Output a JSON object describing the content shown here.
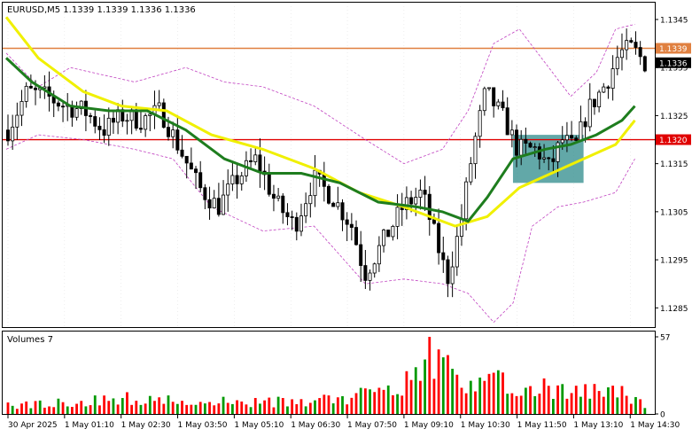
{
  "chart_title": "EURUSD,M5  1.1339 1.1339 1.1336 1.1336",
  "volume_label": "Volumes 7",
  "colors": {
    "bull": "#009900",
    "bear": "#ff0000",
    "sma_yellow": "#f0f000",
    "ma_green": "#1e7d1e",
    "envelope": "#c040c0",
    "support_line": "#e00000",
    "resistance_line": "#e08040",
    "zone": "#2e8b8b"
  },
  "chart_data": [
    {
      "type": "candlestick",
      "title": "EURUSD,M5  1.1339 1.1339 1.1336 1.1336",
      "y_ticks": [
        "1.1345",
        "1.1335",
        "1.1325",
        "1.1315",
        "1.1305",
        "1.1295",
        "1.1285"
      ],
      "ylim": [
        1.1281,
        1.13485
      ],
      "x_ticks": [
        "30 Apr 2025",
        "1 May 01:10",
        "1 May 02:30",
        "1 May 03:50",
        "1 May 05:10",
        "1 May 06:30",
        "1 May 07:50",
        "1 May 09:10",
        "1 May 10:30",
        "1 May 11:50",
        "1 May 13:10",
        "1 May 14:30"
      ],
      "price_labels": [
        {
          "text": "1.1339",
          "value": 1.1339,
          "color": "#e08040"
        },
        {
          "text": "1.1336",
          "value": 1.1336,
          "color": "#000000"
        },
        {
          "text": "1.1320",
          "value": 1.132,
          "color": "#e00000"
        }
      ],
      "horizontal_lines": [
        {
          "value": 1.1339,
          "color": "#e08040"
        },
        {
          "value": 1.132,
          "color": "#e00000"
        }
      ],
      "zone": {
        "x_from": 0.79,
        "x_to": 0.9,
        "y_from": 1.1311,
        "y_to": 1.1321
      },
      "anchors_close": [
        [
          0,
          1.1322
        ],
        [
          0.03,
          1.133
        ],
        [
          0.06,
          1.1329
        ],
        [
          0.09,
          1.1327
        ],
        [
          0.12,
          1.1326
        ],
        [
          0.15,
          1.1322
        ],
        [
          0.18,
          1.1325
        ],
        [
          0.21,
          1.1324
        ],
        [
          0.24,
          1.1326
        ],
        [
          0.27,
          1.1318
        ],
        [
          0.3,
          1.131
        ],
        [
          0.33,
          1.1306
        ],
        [
          0.36,
          1.1312
        ],
        [
          0.39,
          1.1316
        ],
        [
          0.42,
          1.1307
        ],
        [
          0.45,
          1.1302
        ],
        [
          0.48,
          1.1312
        ],
        [
          0.51,
          1.1308
        ],
        [
          0.54,
          1.1302
        ],
        [
          0.56,
          1.1292
        ],
        [
          0.59,
          1.1299
        ],
        [
          0.62,
          1.1306
        ],
        [
          0.65,
          1.1309
        ],
        [
          0.67,
          1.13
        ],
        [
          0.69,
          1.1291
        ],
        [
          0.71,
          1.1302
        ],
        [
          0.73,
          1.1318
        ],
        [
          0.75,
          1.133
        ],
        [
          0.78,
          1.1324
        ],
        [
          0.8,
          1.1318
        ],
        [
          0.83,
          1.1318
        ],
        [
          0.85,
          1.1314
        ],
        [
          0.87,
          1.132
        ],
        [
          0.89,
          1.1318
        ],
        [
          0.91,
          1.1326
        ],
        [
          0.94,
          1.1332
        ],
        [
          0.96,
          1.1338
        ],
        [
          0.98,
          1.1339
        ],
        [
          1.0,
          1.1336
        ]
      ],
      "sma_yellow": [
        [
          0,
          1.13455
        ],
        [
          0.05,
          1.1337
        ],
        [
          0.12,
          1.133
        ],
        [
          0.18,
          1.1327
        ],
        [
          0.25,
          1.1326
        ],
        [
          0.32,
          1.1321
        ],
        [
          0.4,
          1.1318
        ],
        [
          0.48,
          1.1314
        ],
        [
          0.55,
          1.1309
        ],
        [
          0.62,
          1.1306
        ],
        [
          0.7,
          1.1302
        ],
        [
          0.75,
          1.1304
        ],
        [
          0.8,
          1.131
        ],
        [
          0.85,
          1.1313
        ],
        [
          0.9,
          1.1316
        ],
        [
          0.95,
          1.1319
        ],
        [
          0.98,
          1.1324
        ]
      ],
      "ma_green": [
        [
          0,
          1.1337
        ],
        [
          0.04,
          1.1332
        ],
        [
          0.1,
          1.1327
        ],
        [
          0.16,
          1.1326
        ],
        [
          0.22,
          1.1326
        ],
        [
          0.28,
          1.1322
        ],
        [
          0.34,
          1.1316
        ],
        [
          0.4,
          1.1313
        ],
        [
          0.46,
          1.1313
        ],
        [
          0.52,
          1.1311
        ],
        [
          0.58,
          1.1307
        ],
        [
          0.64,
          1.1306
        ],
        [
          0.68,
          1.1305
        ],
        [
          0.72,
          1.1303
        ],
        [
          0.75,
          1.1308
        ],
        [
          0.79,
          1.1316
        ],
        [
          0.84,
          1.1318
        ],
        [
          0.88,
          1.1319
        ],
        [
          0.92,
          1.1321
        ],
        [
          0.96,
          1.1324
        ],
        [
          0.98,
          1.1327
        ]
      ],
      "env_upper": [
        [
          0,
          1.1338
        ],
        [
          0.05,
          1.1331
        ],
        [
          0.1,
          1.1335
        ],
        [
          0.2,
          1.1332
        ],
        [
          0.28,
          1.1335
        ],
        [
          0.34,
          1.1332
        ],
        [
          0.4,
          1.1331
        ],
        [
          0.48,
          1.1327
        ],
        [
          0.56,
          1.132
        ],
        [
          0.62,
          1.1315
        ],
        [
          0.68,
          1.1318
        ],
        [
          0.72,
          1.1326
        ],
        [
          0.76,
          1.134
        ],
        [
          0.8,
          1.1343
        ],
        [
          0.84,
          1.1336
        ],
        [
          0.88,
          1.1329
        ],
        [
          0.92,
          1.1334
        ],
        [
          0.95,
          1.1343
        ],
        [
          0.98,
          1.1344
        ]
      ],
      "env_lower": [
        [
          0,
          1.1318
        ],
        [
          0.05,
          1.1321
        ],
        [
          0.12,
          1.132
        ],
        [
          0.2,
          1.1318
        ],
        [
          0.26,
          1.1316
        ],
        [
          0.32,
          1.1306
        ],
        [
          0.4,
          1.1301
        ],
        [
          0.48,
          1.1302
        ],
        [
          0.56,
          1.129
        ],
        [
          0.62,
          1.1291
        ],
        [
          0.68,
          1.129
        ],
        [
          0.72,
          1.1288
        ],
        [
          0.76,
          1.1282
        ],
        [
          0.79,
          1.1286
        ],
        [
          0.82,
          1.1302
        ],
        [
          0.86,
          1.1306
        ],
        [
          0.9,
          1.1307
        ],
        [
          0.95,
          1.1309
        ],
        [
          0.98,
          1.1316
        ]
      ]
    },
    {
      "type": "bar",
      "title": "Volumes 7",
      "y_ticks": [
        "57",
        "0"
      ],
      "ylim": [
        0,
        57
      ],
      "volume_profile": [
        [
          0,
          8
        ],
        [
          0.1,
          10
        ],
        [
          0.2,
          14
        ],
        [
          0.3,
          12
        ],
        [
          0.4,
          10
        ],
        [
          0.5,
          13
        ],
        [
          0.55,
          16
        ],
        [
          0.6,
          22
        ],
        [
          0.64,
          38
        ],
        [
          0.67,
          57
        ],
        [
          0.7,
          30
        ],
        [
          0.75,
          28
        ],
        [
          0.8,
          26
        ],
        [
          0.85,
          22
        ],
        [
          0.9,
          18
        ],
        [
          0.94,
          24
        ],
        [
          0.97,
          16
        ],
        [
          1.0,
          7
        ]
      ]
    }
  ]
}
